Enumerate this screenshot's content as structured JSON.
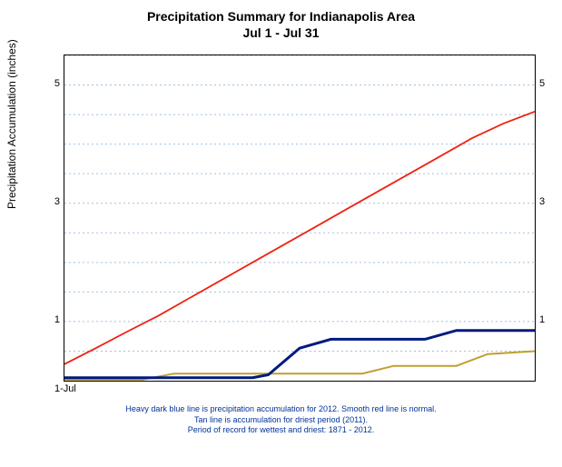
{
  "chart": {
    "type": "line",
    "title_line1": "Precipitation Summary for Indianapolis Area",
    "title_line2": "Jul 1 - Jul 31",
    "title_fontsize": 14,
    "ylabel": "Precipitation Accumulation (inches)",
    "label_fontsize": 12,
    "background_color": "#ffffff",
    "grid_color": "#6699cc",
    "xlim": [
      1,
      31
    ],
    "ylim": [
      0,
      5.5
    ],
    "yticks": [
      1,
      3,
      5
    ],
    "xtick_label": "1-Jul",
    "yaxis_right_mirror": true,
    "plot_border_color": "#000000",
    "series": {
      "normal": {
        "label": "normal",
        "color": "#ee2211",
        "line_width": 1.8,
        "x": [
          1,
          3,
          5,
          7,
          9,
          11,
          13,
          15,
          17,
          19,
          21,
          23,
          25,
          27,
          29,
          31
        ],
        "y": [
          0.28,
          0.55,
          0.83,
          1.1,
          1.4,
          1.7,
          2.0,
          2.3,
          2.6,
          2.9,
          3.2,
          3.5,
          3.8,
          4.1,
          4.35,
          4.55
        ]
      },
      "year2012": {
        "label": "2012",
        "color": "#001a80",
        "line_width": 3,
        "x": [
          1,
          13,
          14,
          16,
          18,
          24,
          26,
          31
        ],
        "y": [
          0.05,
          0.05,
          0.1,
          0.55,
          0.7,
          0.7,
          0.85,
          0.85
        ]
      },
      "driest2011": {
        "label": "driest (2011)",
        "color": "#bfa030",
        "line_width": 2,
        "x": [
          1,
          6,
          8,
          20,
          22,
          26,
          28,
          31
        ],
        "y": [
          0.02,
          0.02,
          0.12,
          0.12,
          0.25,
          0.25,
          0.45,
          0.5
        ]
      }
    },
    "caption_line1": "Heavy dark blue line is precipitation accumulation for 2012. Smooth red line is normal.",
    "caption_line2": "Tan line is accumulation for driest period (2011).",
    "caption_line3": "Period of record for wettest and driest: 1871 - 2012.",
    "caption_color": "#003399",
    "caption_fontsize": 9
  }
}
